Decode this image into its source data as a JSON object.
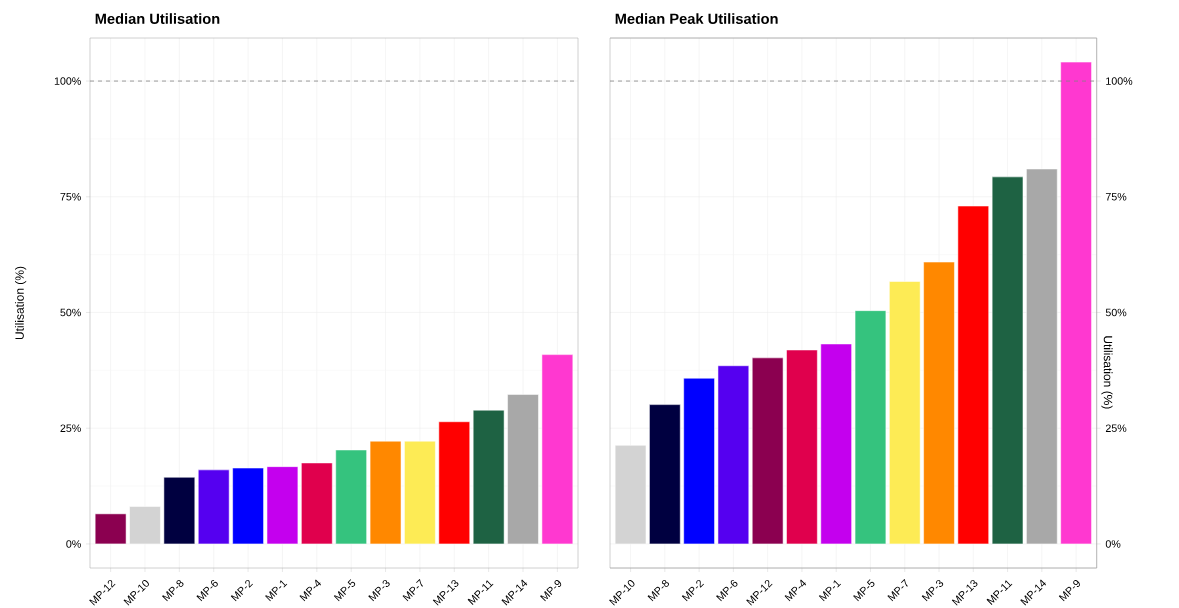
{
  "chart_data": [
    {
      "type": "bar",
      "title": "Median Utilisation",
      "ylabel": "Utilisation (%)",
      "categories": [
        "MP-12",
        "MP-10",
        "MP-8",
        "MP-6",
        "MP-2",
        "MP-1",
        "MP-4",
        "MP-5",
        "MP-3",
        "MP-7",
        "MP-13",
        "MP-11",
        "MP-14",
        "MP-9"
      ],
      "values": [
        6.5,
        8.1,
        14.4,
        16.0,
        16.4,
        16.7,
        17.5,
        20.3,
        22.2,
        22.2,
        26.4,
        28.9,
        32.3,
        40.9
      ],
      "colors": [
        "#8b0050",
        "#d3d3d3",
        "#000040",
        "#5500f0",
        "#0000ff",
        "#c400ee",
        "#e0004d",
        "#35c37e",
        "#ff8800",
        "#fdeb55",
        "#ff0000",
        "#1e6243",
        "#a8a8a8",
        "#ff38d0"
      ],
      "ylim": [
        -5.2,
        109.3
      ],
      "yticks": [
        {
          "value": 0,
          "label": "0%"
        },
        {
          "value": 25,
          "label": "25%"
        },
        {
          "value": 50,
          "label": "50%"
        },
        {
          "value": 75,
          "label": "75%"
        },
        {
          "value": 100,
          "label": "100%"
        }
      ],
      "grid": true,
      "ref_lines": [
        {
          "axis": "y",
          "value": 100,
          "color": "#808080",
          "line_style": "dashed"
        }
      ]
    },
    {
      "type": "bar",
      "title": "Median Peak Utilisation",
      "ylabel": "Utilisation (%)",
      "categories": [
        "MP-10",
        "MP-8",
        "MP-2",
        "MP-6",
        "MP-12",
        "MP-4",
        "MP-1",
        "MP-5",
        "MP-7",
        "MP-3",
        "MP-13",
        "MP-11",
        "MP-14",
        "MP-9"
      ],
      "values": [
        21.3,
        30.1,
        35.8,
        38.5,
        40.2,
        41.9,
        43.2,
        50.4,
        56.7,
        60.9,
        73.0,
        79.3,
        81.0,
        104.1
      ],
      "colors": [
        "#d3d3d3",
        "#000040",
        "#0000ff",
        "#5500f0",
        "#8b0050",
        "#e0004d",
        "#c400ee",
        "#35c37e",
        "#fdeb55",
        "#ff8800",
        "#ff0000",
        "#1e6243",
        "#a8a8a8",
        "#ff38d0"
      ],
      "ylim": [
        -5.2,
        109.3
      ],
      "yticks": [
        {
          "value": 0,
          "label": "0%"
        },
        {
          "value": 25,
          "label": "25%"
        },
        {
          "value": 50,
          "label": "50%"
        },
        {
          "value": 75,
          "label": "75%"
        },
        {
          "value": 100,
          "label": "100%"
        }
      ],
      "grid": true,
      "ref_lines": [
        {
          "axis": "y",
          "value": 100,
          "color": "#808080",
          "line_style": "dashed"
        }
      ]
    }
  ]
}
